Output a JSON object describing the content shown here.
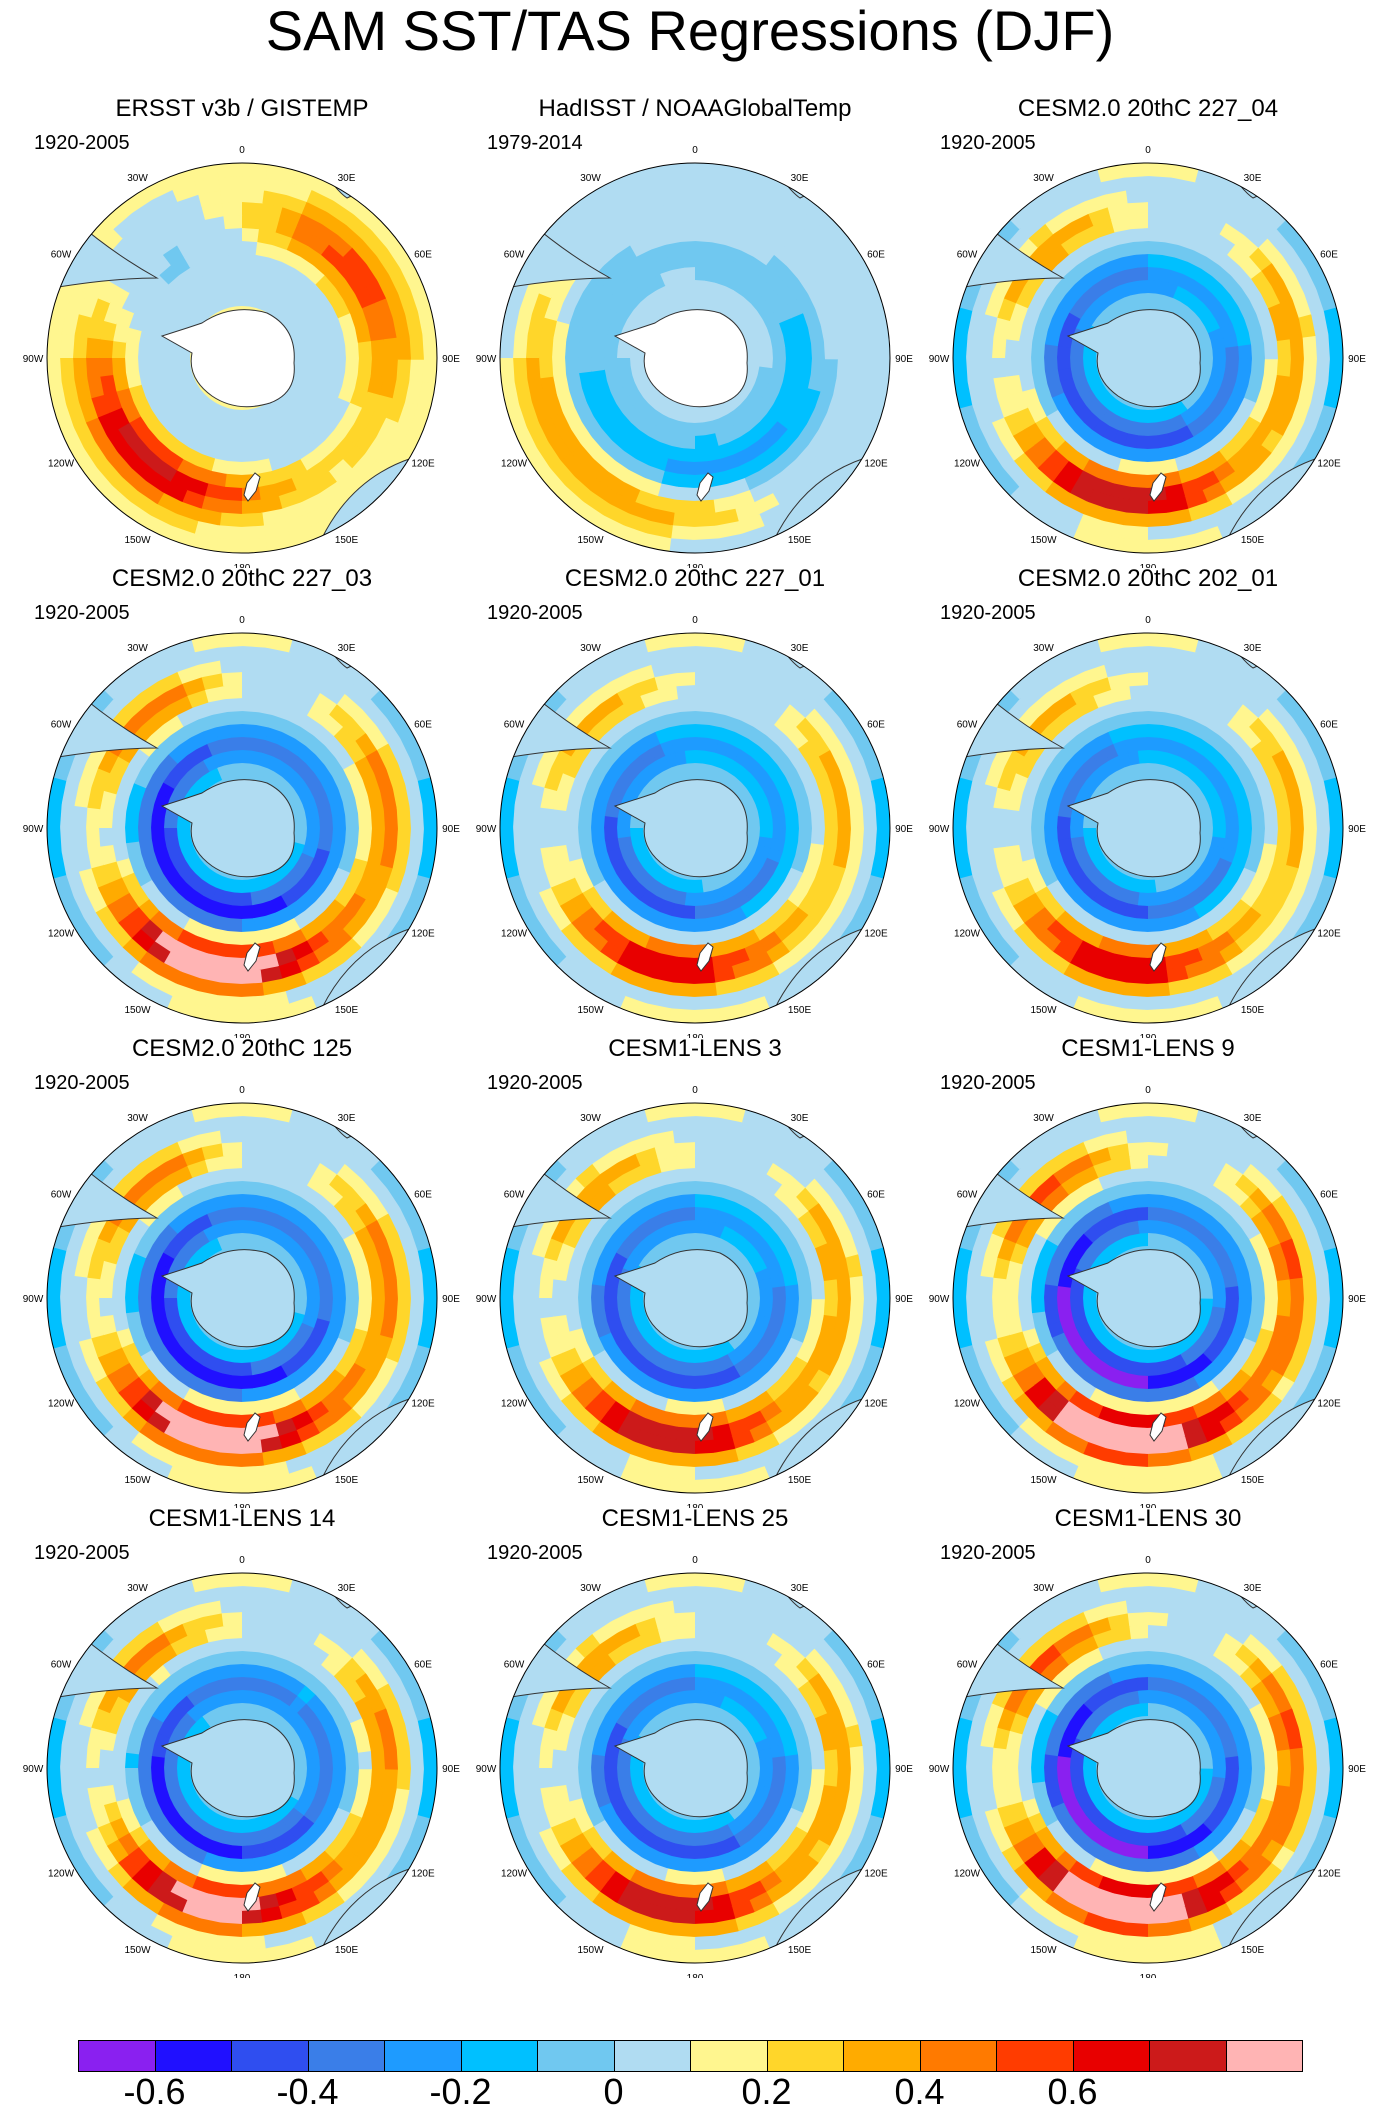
{
  "title": "SAM SST/TAS Regressions (DJF)",
  "lon_labels": [
    "0",
    "30E",
    "60E",
    "90E",
    "120E",
    "150E",
    "180",
    "150W",
    "120W",
    "90W",
    "60W",
    "30W"
  ],
  "panels": [
    {
      "title": "ERSST v3b / GISTEMP",
      "period": "1920-2005",
      "pattern": "obs",
      "amp": 0.45,
      "ant_color": "#ffffff"
    },
    {
      "title": "HadISST / NOAAGlobalTemp",
      "period": "1979-2014",
      "pattern": "obs2",
      "amp": 0.4,
      "ant_color": "#ffffff"
    },
    {
      "title": "CESM2.0 20thC 227_04",
      "period": "1920-2005",
      "pattern": "model",
      "amp": 0.45,
      "ant_color": "#b0dcf2"
    },
    {
      "title": "CESM2.0 20thC 227_03",
      "period": "1920-2005",
      "pattern": "model",
      "amp": 0.55,
      "ant_color": "#b0dcf2"
    },
    {
      "title": "CESM2.0 20thC 227_01",
      "period": "1920-2005",
      "pattern": "model",
      "amp": 0.4,
      "ant_color": "#b0dcf2"
    },
    {
      "title": "CESM2.0 20thC 202_01",
      "period": "1920-2005",
      "pattern": "model",
      "amp": 0.4,
      "ant_color": "#b0dcf2"
    },
    {
      "title": "CESM2.0 20thC 125",
      "period": "1920-2005",
      "pattern": "model",
      "amp": 0.55,
      "ant_color": "#b0dcf2"
    },
    {
      "title": "CESM1-LENS 3",
      "period": "1920-2005",
      "pattern": "model",
      "amp": 0.45,
      "ant_color": "#b0dcf2"
    },
    {
      "title": "CESM1-LENS 9",
      "period": "1920-2005",
      "pattern": "model",
      "amp": 0.6,
      "ant_color": "#b0dcf2"
    },
    {
      "title": "CESM1-LENS 14",
      "period": "1920-2005",
      "pattern": "model",
      "amp": 0.5,
      "ant_color": "#b0dcf2"
    },
    {
      "title": "CESM1-LENS 25",
      "period": "1920-2005",
      "pattern": "model",
      "amp": 0.45,
      "ant_color": "#b0dcf2"
    },
    {
      "title": "CESM1-LENS 30",
      "period": "1920-2005",
      "pattern": "model",
      "amp": 0.6,
      "ant_color": "#b0dcf2"
    }
  ],
  "colorbar": {
    "colors": [
      "#8a20f0",
      "#2010ff",
      "#2f4ef0",
      "#3a7ee8",
      "#1e9bff",
      "#00c0ff",
      "#70c8f0",
      "#b0dcf2",
      "#fff68f",
      "#ffd62a",
      "#ffab00",
      "#ff7a00",
      "#ff3c00",
      "#e80000",
      "#cc1a1a",
      "#ffb4b4"
    ],
    "ticks": [
      "-0.6",
      "-0.4",
      "-0.2",
      "0",
      "0.2",
      "0.4",
      "0.6"
    ],
    "tick_values": [
      -0.6,
      -0.4,
      -0.2,
      0,
      0.2,
      0.4,
      0.6
    ],
    "min": -0.7,
    "step": 0.1
  }
}
